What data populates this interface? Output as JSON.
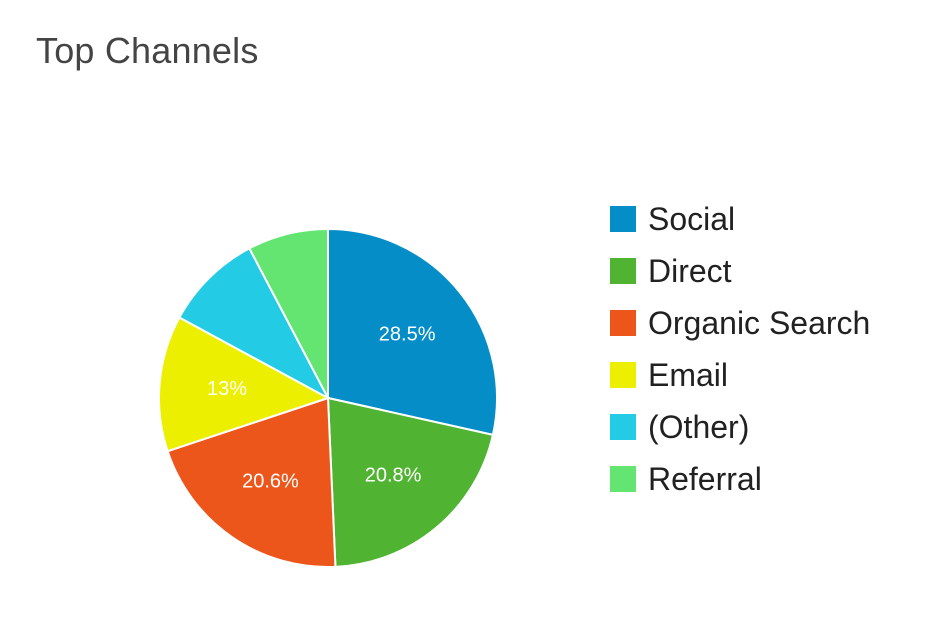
{
  "chart_data": {
    "type": "pie",
    "title": "Top Channels",
    "categories": [
      "Social",
      "Direct",
      "Organic Search",
      "Email",
      "(Other)",
      "Referral"
    ],
    "values": [
      28.5,
      20.8,
      20.6,
      13.0,
      9.4,
      7.7
    ],
    "data_labels": [
      "28.5%",
      "20.8%",
      "20.6%",
      "13%",
      "",
      ""
    ],
    "colors": [
      "#058dc7",
      "#50b432",
      "#ed561b",
      "#edef00",
      "#24cbe5",
      "#64e572"
    ],
    "legend_position": "right",
    "start_angle": "12 o'clock",
    "direction": "clockwise"
  }
}
